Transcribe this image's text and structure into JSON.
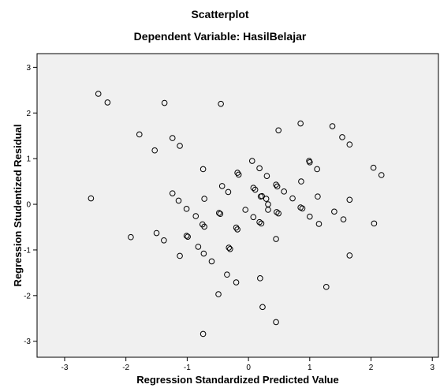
{
  "chart_data": {
    "type": "scatter",
    "title": "Scatterplot",
    "subtitle": "Dependent Variable: HasilBelajar",
    "xlabel": "Regression Standardized Predicted Value",
    "ylabel": "Regression Studentized Residual",
    "xlim": [
      -3.45,
      3.1
    ],
    "ylim": [
      -3.35,
      3.3
    ],
    "xticks": [
      -3,
      -2,
      -1,
      0,
      1,
      2,
      3
    ],
    "yticks": [
      -3,
      -2,
      -1,
      0,
      1,
      2,
      3
    ],
    "grid": false,
    "background": "#f0f0f0",
    "marker": "open-circle",
    "points": [
      [
        -2.45,
        2.42
      ],
      [
        -2.3,
        2.23
      ],
      [
        -1.37,
        2.22
      ],
      [
        -0.45,
        2.2
      ],
      [
        -1.78,
        1.53
      ],
      [
        -1.24,
        1.45
      ],
      [
        -1.53,
        1.18
      ],
      [
        -1.12,
        1.28
      ],
      [
        0.49,
        1.62
      ],
      [
        0.85,
        1.77
      ],
      [
        1.37,
        1.71
      ],
      [
        1.53,
        1.47
      ],
      [
        1.65,
        1.31
      ],
      [
        -2.57,
        0.13
      ],
      [
        -0.74,
        0.77
      ],
      [
        -0.18,
        0.69
      ],
      [
        -0.16,
        0.65
      ],
      [
        0.06,
        0.95
      ],
      [
        0.18,
        0.79
      ],
      [
        0.3,
        0.62
      ],
      [
        0.86,
        0.5
      ],
      [
        0.99,
        0.95
      ],
      [
        1.0,
        0.92
      ],
      [
        1.12,
        0.77
      ],
      [
        2.04,
        0.8
      ],
      [
        2.17,
        0.64
      ],
      [
        -1.24,
        0.24
      ],
      [
        -1.14,
        0.08
      ],
      [
        -0.72,
        0.12
      ],
      [
        -0.43,
        0.4
      ],
      [
        -0.33,
        0.27
      ],
      [
        -0.05,
        -0.12
      ],
      [
        0.08,
        0.36
      ],
      [
        0.11,
        0.32
      ],
      [
        0.2,
        0.17
      ],
      [
        0.22,
        0.18
      ],
      [
        0.29,
        0.12
      ],
      [
        0.32,
        0.0
      ],
      [
        0.45,
        0.43
      ],
      [
        0.47,
        0.39
      ],
      [
        0.58,
        0.28
      ],
      [
        0.72,
        0.13
      ],
      [
        0.85,
        -0.07
      ],
      [
        0.88,
        -0.09
      ],
      [
        1.13,
        0.17
      ],
      [
        1.65,
        0.1
      ],
      [
        -1.01,
        -0.1
      ],
      [
        -0.86,
        -0.26
      ],
      [
        -0.75,
        -0.44
      ],
      [
        -0.72,
        -0.49
      ],
      [
        -0.48,
        -0.19
      ],
      [
        -0.46,
        -0.21
      ],
      [
        -0.2,
        -0.51
      ],
      [
        -0.18,
        -0.55
      ],
      [
        0.08,
        -0.28
      ],
      [
        0.18,
        -0.39
      ],
      [
        0.21,
        -0.42
      ],
      [
        0.32,
        -0.12
      ],
      [
        0.46,
        -0.17
      ],
      [
        0.49,
        -0.2
      ],
      [
        1.0,
        -0.27
      ],
      [
        1.15,
        -0.43
      ],
      [
        1.4,
        -0.16
      ],
      [
        1.55,
        -0.33
      ],
      [
        2.05,
        -0.42
      ],
      [
        -1.92,
        -0.72
      ],
      [
        -1.5,
        -0.63
      ],
      [
        -1.38,
        -0.79
      ],
      [
        -1.01,
        -0.69
      ],
      [
        -0.99,
        -0.71
      ],
      [
        -1.12,
        -1.13
      ],
      [
        -0.82,
        -0.93
      ],
      [
        -0.73,
        -1.08
      ],
      [
        -0.6,
        -1.25
      ],
      [
        -0.32,
        -0.95
      ],
      [
        -0.3,
        -0.98
      ],
      [
        0.45,
        -0.76
      ],
      [
        1.65,
        -1.12
      ],
      [
        -0.35,
        -1.54
      ],
      [
        -0.2,
        -1.71
      ],
      [
        0.19,
        -1.62
      ],
      [
        1.27,
        -1.81
      ],
      [
        -0.49,
        -1.97
      ],
      [
        0.23,
        -2.25
      ],
      [
        0.45,
        -2.58
      ],
      [
        -0.74,
        -2.84
      ]
    ]
  }
}
